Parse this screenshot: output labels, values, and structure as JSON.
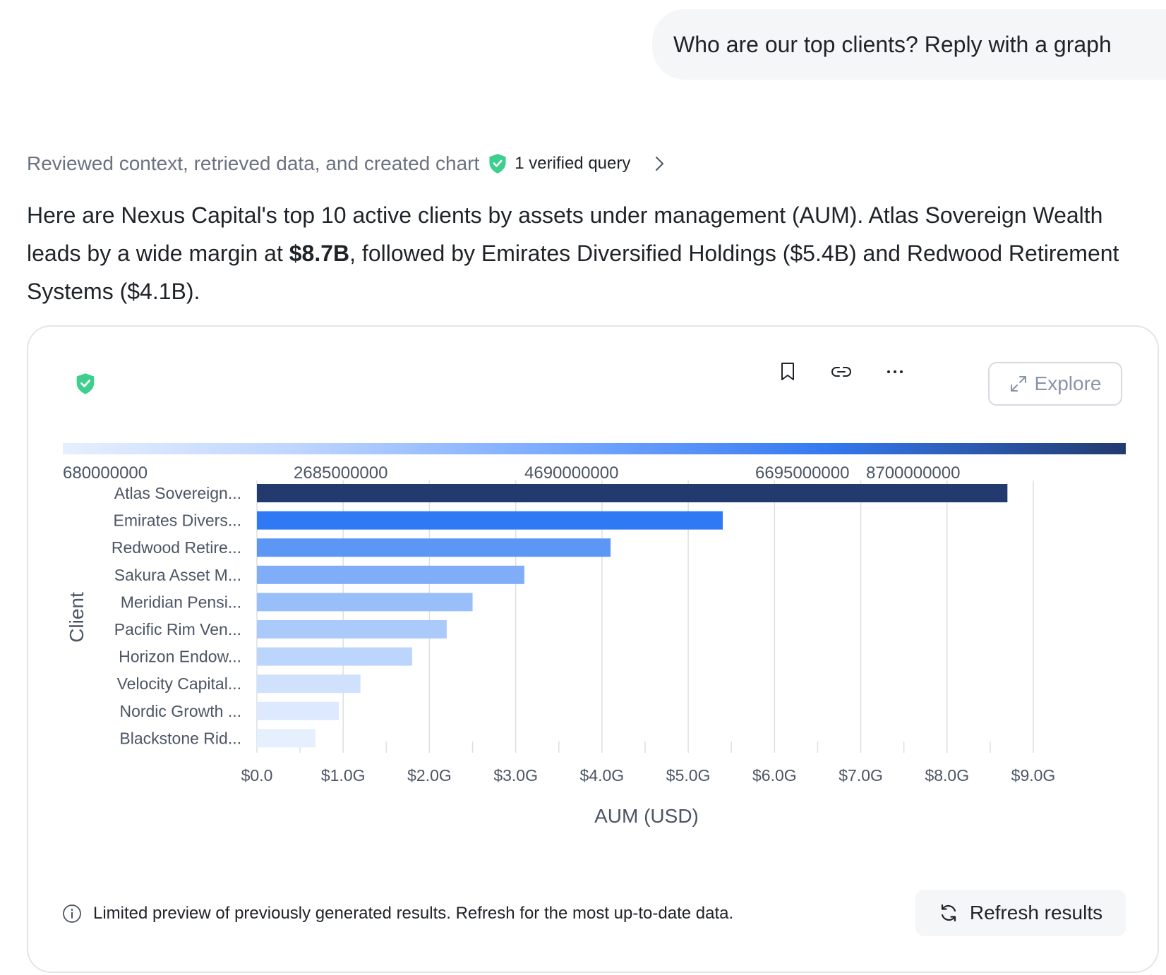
{
  "user_message": "Who are our top clients? Reply with a graph",
  "status": {
    "text": "Reviewed context, retrieved data, and created chart",
    "verified_label": "1 verified query"
  },
  "summary": {
    "part1": "Here are Nexus Capital's top 10 active clients by assets under management (AUM). Atlas Sovereign Wealth leads by a wide margin at ",
    "bold": "$8.7B",
    "part2": ", followed by Emirates Diversified Holdings ($5.4B) and Redwood Retirement Systems ($4.1B)."
  },
  "toolbar": {
    "explore_label": "Explore"
  },
  "color_legend": {
    "ticks": [
      "680000000",
      "2685000000",
      "4690000000",
      "6695000000",
      "8700000000"
    ],
    "tick_values": [
      680000000,
      2685000000,
      4690000000,
      6695000000,
      8700000000
    ]
  },
  "chart_data": {
    "type": "bar",
    "orientation": "horizontal",
    "categories": [
      "Atlas Sovereign...",
      "Emirates Divers...",
      "Redwood Retire...",
      "Sakura Asset M...",
      "Meridian Pensi...",
      "Pacific Rim Ven...",
      "Horizon Endow...",
      "Velocity Capital...",
      "Nordic Growth ...",
      "Blackstone Rid..."
    ],
    "values": [
      8700000000,
      5400000000,
      4100000000,
      3100000000,
      2500000000,
      2200000000,
      1800000000,
      1200000000,
      950000000,
      680000000
    ],
    "colors": [
      "#223a6e",
      "#2f7af4",
      "#5d97f6",
      "#7fadf8",
      "#98bff9",
      "#a9cafb",
      "#bcd5fc",
      "#d0e1fd",
      "#dde9fe",
      "#e6effe"
    ],
    "xlabel": "AUM (USD)",
    "ylabel": "Client",
    "xlim": [
      0,
      9000000000
    ],
    "xticks": [
      "$0.0",
      "$1.0G",
      "$2.0G",
      "$3.0G",
      "$4.0G",
      "$5.0G",
      "$6.0G",
      "$7.0G",
      "$8.0G",
      "$9.0G"
    ],
    "grid": true
  },
  "footer": {
    "note": "Limited preview of previously generated results. Refresh for the most up-to-date data.",
    "refresh_label": "Refresh results"
  },
  "icons": {
    "shield": "shield-check-icon",
    "chevron": "chevron-right-icon",
    "bookmark": "bookmark-icon",
    "link": "link-icon",
    "more": "more-icon",
    "expand": "expand-icon",
    "info": "info-icon",
    "refresh": "refresh-icon"
  },
  "accent_color": "#3ecf8e"
}
